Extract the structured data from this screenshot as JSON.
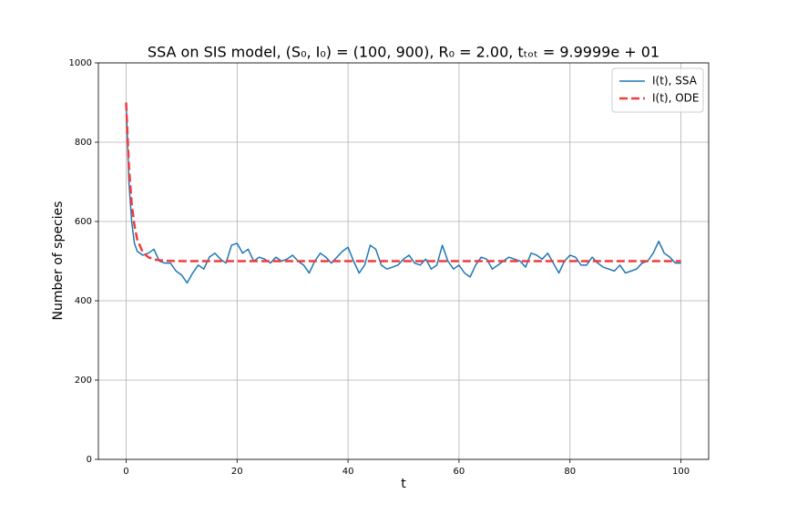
{
  "chart_data": {
    "type": "line",
    "title": "SSA on SIS model, (S₀, I₀) = (100, 900), R₀ = 2.00, tₜₒₜ = 9.9999e + 01",
    "xlabel": "t",
    "ylabel": "Number of species",
    "xlim": [
      -5,
      105
    ],
    "ylim": [
      0,
      1000
    ],
    "xticks": [
      0,
      20,
      40,
      60,
      80,
      100
    ],
    "yticks": [
      0,
      200,
      400,
      600,
      800,
      1000
    ],
    "grid": true,
    "legend": "upper right",
    "series": [
      {
        "name": "I(t), SSA",
        "color": "#1f77b4",
        "linestyle": "solid",
        "x": [
          0,
          0.25,
          0.5,
          1,
          1.5,
          2,
          3,
          4,
          5,
          6,
          7,
          8,
          9,
          10,
          11,
          12,
          13,
          14,
          15,
          16,
          17,
          18,
          19,
          20,
          21,
          22,
          23,
          24,
          25,
          26,
          27,
          28,
          29,
          30,
          31,
          32,
          33,
          34,
          35,
          36,
          37,
          38,
          39,
          40,
          41,
          42,
          43,
          44,
          45,
          46,
          47,
          48,
          49,
          50,
          51,
          52,
          53,
          54,
          55,
          56,
          57,
          58,
          59,
          60,
          61,
          62,
          63,
          64,
          65,
          66,
          67,
          68,
          69,
          70,
          71,
          72,
          73,
          74,
          75,
          76,
          77,
          78,
          79,
          80,
          81,
          82,
          83,
          84,
          85,
          86,
          87,
          88,
          89,
          90,
          91,
          92,
          93,
          94,
          95,
          96,
          97,
          98,
          99,
          100
        ],
        "values": [
          900,
          800,
          700,
          600,
          545,
          525,
          515,
          520,
          530,
          500,
          495,
          495,
          475,
          465,
          445,
          470,
          490,
          480,
          510,
          520,
          505,
          495,
          540,
          545,
          520,
          530,
          500,
          510,
          505,
          495,
          510,
          500,
          505,
          515,
          500,
          490,
          470,
          500,
          520,
          510,
          495,
          510,
          525,
          535,
          500,
          470,
          490,
          540,
          530,
          490,
          480,
          485,
          490,
          505,
          515,
          495,
          490,
          505,
          480,
          490,
          540,
          500,
          480,
          490,
          470,
          460,
          490,
          510,
          505,
          480,
          490,
          500,
          510,
          505,
          500,
          485,
          520,
          515,
          505,
          520,
          495,
          470,
          500,
          515,
          510,
          490,
          490,
          510,
          495,
          485,
          480,
          475,
          490,
          470,
          475,
          480,
          495,
          500,
          520,
          550,
          520,
          510,
          495,
          495
        ]
      },
      {
        "name": "I(t), ODE",
        "color": "#f03c3c",
        "linestyle": "dashed",
        "x": [
          0,
          0.5,
          1,
          1.5,
          2,
          3,
          4,
          5,
          7,
          10,
          100
        ],
        "values": [
          900,
          740,
          645,
          590,
          555,
          522,
          510,
          504,
          501,
          500,
          500
        ]
      }
    ]
  }
}
